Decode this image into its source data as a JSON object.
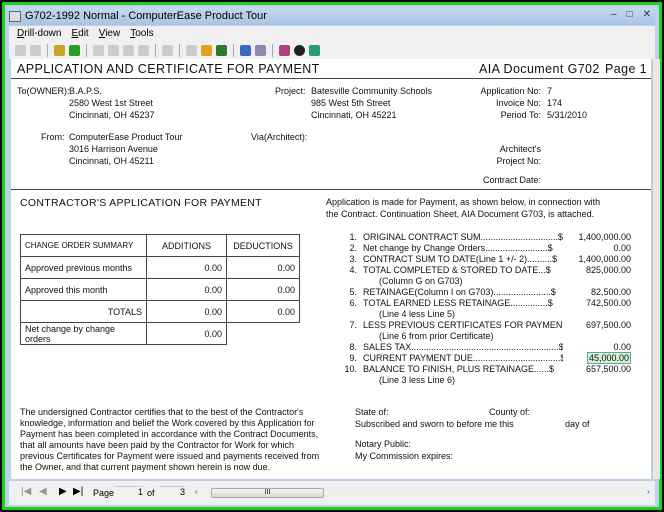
{
  "window": {
    "title": "G702-1992 Normal - ComputerEase Product Tour",
    "minimize": "–",
    "maximize": "□",
    "close": "✕"
  },
  "menu": [
    "Drill-down",
    "Edit",
    "View",
    "Tools"
  ],
  "toolbar_icons": [
    "prev-record-icon",
    "next-record-icon",
    "document-icon",
    "export-icon",
    "zoom-icon",
    "zoom-out-icon",
    "web-icon",
    "edit-icon",
    "chart-icon",
    "print-icon",
    "open-icon",
    "spreadsheet-icon",
    "back-icon",
    "copy-icon",
    "home-icon",
    "pin-icon",
    "calculator-icon"
  ],
  "doc": {
    "title": "APPLICATION AND CERTIFICATE FOR PAYMENT",
    "doc_id": "AIA Document G702",
    "page_label": "Page 1",
    "to_label": "To(OWNER):",
    "owner": [
      "B.A.P.S.",
      "2580 West 1st Street",
      "Cincinnati, OH 45237"
    ],
    "project_label": "Project:",
    "project": [
      "Batesville Community Schools",
      "985 West 5th Street",
      "Cincinnati, OH 45221"
    ],
    "appno_label": "Application No:",
    "appno": "7",
    "invno_label": "Invoice No:",
    "invno": "174",
    "period_label": "Period To:",
    "period": "5/31/2010",
    "from_label": "From:",
    "from": [
      "ComputerEase Product Tour",
      "3016 Harrison Avenue",
      "Cincinnati, OH 45211"
    ],
    "via_label": "Via(Architect):",
    "arch_label1": "Architect's",
    "arch_label2": "Project No:",
    "contract_date_label": "Contract Date:",
    "contractor_title": "CONTRACTOR'S APPLICATION FOR PAYMENT",
    "app_text": [
      "Application is made for Payment, as shown below, in connection with",
      "the Contract.  Continuation Sheet, AIA Document G703, is attached."
    ],
    "co": {
      "headers": [
        "CHANGE ORDER SUMMARY",
        "ADDITIONS",
        "DEDUCTIONS"
      ],
      "rows": [
        [
          "Approved previous months",
          "0.00",
          "0.00"
        ],
        [
          "Approved this month",
          "0.00",
          "0.00"
        ],
        [
          "TOTALS",
          "0.00",
          "0.00"
        ],
        [
          "Net change by change orders",
          "0.00",
          ""
        ]
      ]
    },
    "lines": [
      {
        "n": "1.",
        "label": "ORIGINAL CONTRACT SUM...............................$",
        "value": "1,400,000.00"
      },
      {
        "n": "2.",
        "label": "Net change by Change Orders.........................$",
        "value": "0.00"
      },
      {
        "n": "3.",
        "label": "CONTRACT SUM TO DATE(Line 1 +/- 2)..........$",
        "value": "1,400,000.00"
      },
      {
        "n": "4.",
        "label": "TOTAL COMPLETED & STORED TO DATE...$",
        "value": "825,000.00",
        "sub": "(Column G on G703)"
      },
      {
        "n": "5.",
        "label": "RETAINAGE(Column I on G703).......................$",
        "value": "82,500.00"
      },
      {
        "n": "6.",
        "label": "TOTAL EARNED LESS RETAINAGE...............$",
        "value": "742,500.00",
        "sub": "(Line 4 less Line 5)"
      },
      {
        "n": "7.",
        "label": "LESS PREVIOUS CERTIFICATES FOR PAYMENT..$",
        "value": "697,500.00",
        "sub": "(Line 6 from prior Certificate)"
      },
      {
        "n": "8.",
        "label": "SALES TAX...........................................................$",
        "value": "0.00"
      },
      {
        "n": "9.",
        "label": "CURRENT PAYMENT DUE...................................$",
        "value": "45,000.00"
      },
      {
        "n": "10.",
        "label": "BALANCE TO FINISH, PLUS RETAINAGE......$",
        "value": "657,500.00",
        "sub": "(Line 3 less Line 6)"
      }
    ],
    "certify": [
      "The undersigned Contractor certifies that to the best of the Contractor's",
      "knowledge, information and belief the Work covered by this Application for",
      "Payment has been completed in accordance with the Contract Documents,",
      "that all amounts have been paid by the Contractor for Work for which",
      "previous Certificates for Payment were issued and payments received from",
      "the Owner, and that current payment shown herein is now due."
    ],
    "state_label": "State of:",
    "county_label": "County of:",
    "sworn_label": "Subscribed and sworn to before me this",
    "day_label": "day of",
    "notary_label": "Notary Public:",
    "commission_label": "My Commission expires:"
  },
  "nav": {
    "page_label": "Page",
    "page": "1",
    "of_label": "of",
    "total": "3",
    "scroll_grip": "III"
  }
}
